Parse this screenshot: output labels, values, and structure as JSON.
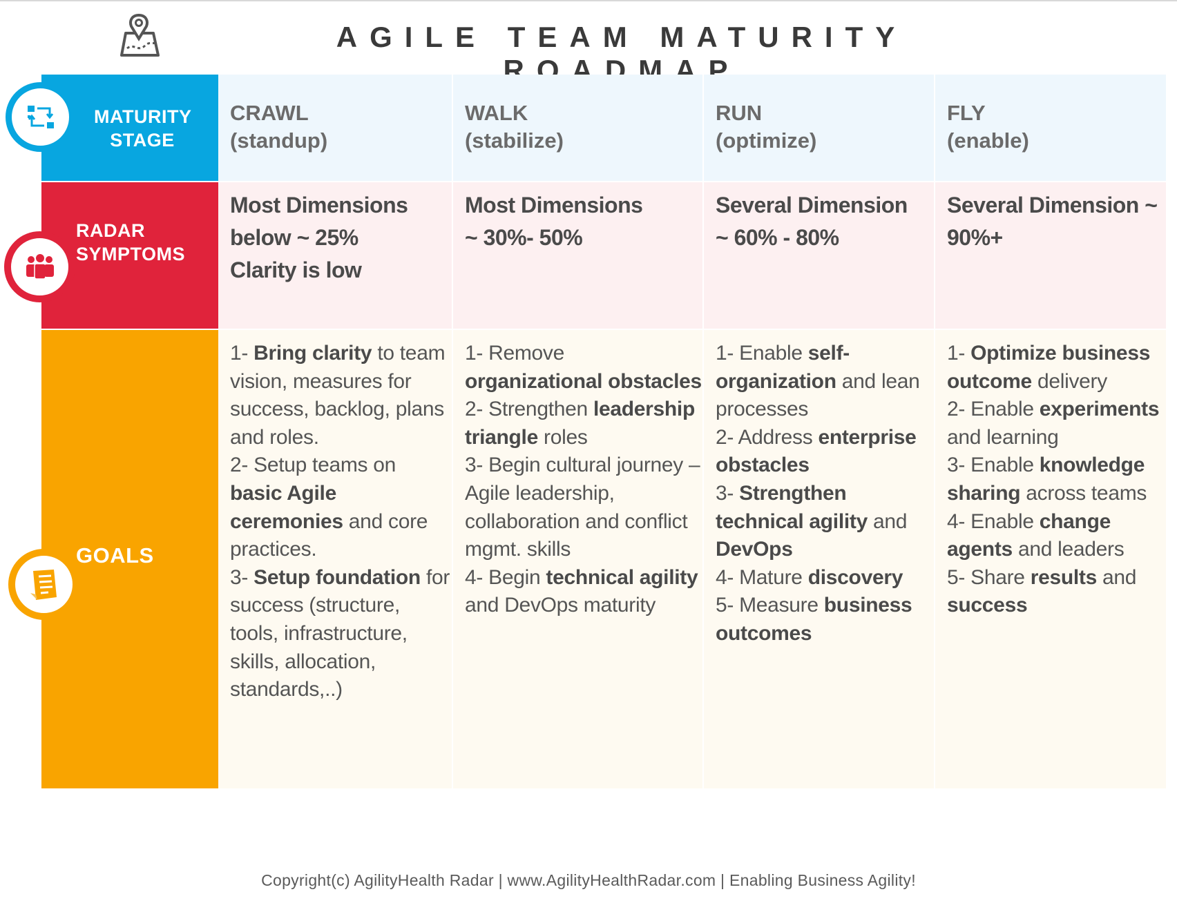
{
  "header": {
    "title": "AGILE TEAM MATURITY ROADMAP",
    "icon": "map-pin-icon"
  },
  "colors": {
    "maturity_stage": "#08a6e0",
    "radar_symptoms": "#e0233b",
    "goals": "#f9a400"
  },
  "rows": {
    "maturity_stage": {
      "line1": "MATURITY",
      "line2": "STAGE",
      "icon": "workflow-icon"
    },
    "radar_symptoms": {
      "line1": "RADAR",
      "line2": "SYMPTOMS",
      "icon": "team-icon"
    },
    "goals": {
      "label": "GOALS",
      "icon": "checklist-icon"
    }
  },
  "stages": [
    {
      "name": "CRAWL",
      "sub": "(standup)",
      "radar": [
        "Most Dimensions",
        "below ~ 25%",
        "Clarity is low"
      ],
      "goals": [
        {
          "t": "1- "
        },
        {
          "t": "Bring clarity",
          "b": true
        },
        {
          "t": " to team vision, measures for success, backlog, plans and roles.\n2- Setup teams on "
        },
        {
          "t": "basic Agile ceremonies",
          "b": true
        },
        {
          "t": " and core practices.\n3- "
        },
        {
          "t": "Setup foundation",
          "b": true
        },
        {
          "t": " for success (structure, tools, infrastructure, skills, allocation, standards,..)"
        }
      ]
    },
    {
      "name": "WALK",
      "sub": "(stabilize)",
      "radar": [
        "Most Dimensions",
        "~ 30%- 50%"
      ],
      "goals": [
        {
          "t": "1- Remove "
        },
        {
          "t": "organizational obstacles",
          "b": true
        },
        {
          "t": "\n2- Strengthen "
        },
        {
          "t": "leadership triangle",
          "b": true
        },
        {
          "t": " roles\n3- Begin cultural journey – Agile leadership, collaboration and conflict mgmt. skills\n4- Begin "
        },
        {
          "t": "technical agility",
          "b": true
        },
        {
          "t": " and DevOps maturity"
        }
      ]
    },
    {
      "name": "RUN",
      "sub": "(optimize)",
      "radar": [
        "Several Dimension",
        "~ 60% - 80%"
      ],
      "goals": [
        {
          "t": "1- Enable "
        },
        {
          "t": "self-organization",
          "b": true
        },
        {
          "t": " and lean processes\n2- Address "
        },
        {
          "t": "enterprise obstacles",
          "b": true
        },
        {
          "t": "\n3- "
        },
        {
          "t": "Strengthen technical agility",
          "b": true
        },
        {
          "t": " and "
        },
        {
          "t": "DevOps",
          "b": true
        },
        {
          "t": "\n4- Mature "
        },
        {
          "t": "discovery",
          "b": true
        },
        {
          "t": "\n5- Measure "
        },
        {
          "t": "business outcomes",
          "b": true
        }
      ]
    },
    {
      "name": "FLY",
      "sub": "(enable)",
      "radar": [
        "Several Dimension ~",
        "90%+"
      ],
      "goals": [
        {
          "t": "1- "
        },
        {
          "t": "Optimize business outcome",
          "b": true
        },
        {
          "t": " delivery\n2- Enable "
        },
        {
          "t": "experiments",
          "b": true
        },
        {
          "t": " and learning\n3- Enable "
        },
        {
          "t": "knowledge sharing",
          "b": true
        },
        {
          "t": " across teams\n4- Enable "
        },
        {
          "t": "change agents",
          "b": true
        },
        {
          "t": " and leaders\n5- Share "
        },
        {
          "t": "results",
          "b": true
        },
        {
          "t": " and "
        },
        {
          "t": "success",
          "b": true
        }
      ]
    }
  ],
  "footer": {
    "text": "Copyright(c) AgilityHealth Radar | www.AgilityHealthRadar.com | Enabling Business Agility!"
  }
}
